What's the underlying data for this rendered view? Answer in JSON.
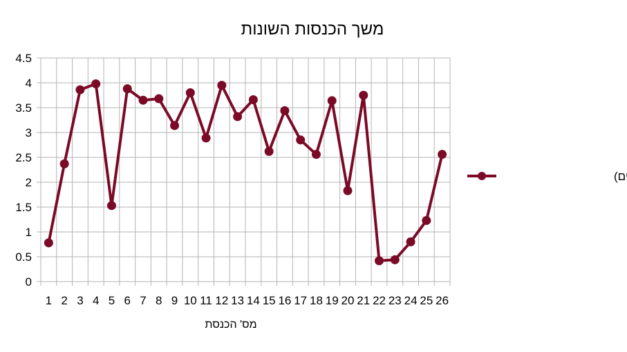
{
  "chart_data": {
    "type": "line",
    "title": "משך הכנסות השונות",
    "xlabel": "מס' הכנסת",
    "ylabel": "",
    "ylim": [
      0,
      4.5
    ],
    "yticks": [
      0,
      0.5,
      1,
      1.5,
      2,
      2.5,
      3,
      3.5,
      4,
      4.5
    ],
    "grid": true,
    "legend_position": "right",
    "categories": [
      "1",
      "2",
      "3",
      "4",
      "5",
      "6",
      "7",
      "8",
      "9",
      "10",
      "11",
      "12",
      "13",
      "14",
      "15",
      "16",
      "17",
      "18",
      "19",
      "20",
      "21",
      "22",
      "23",
      "24",
      "25",
      "26"
    ],
    "series": [
      {
        "name": "משך הכנסת (שנים)",
        "color": "#7b0a26",
        "values": [
          0.78,
          2.37,
          3.86,
          3.98,
          1.53,
          3.88,
          3.65,
          3.68,
          3.14,
          3.8,
          2.89,
          3.95,
          3.32,
          3.66,
          2.62,
          3.44,
          2.85,
          2.56,
          3.64,
          1.83,
          3.75,
          0.42,
          0.44,
          0.8,
          1.23,
          2.56
        ]
      }
    ]
  }
}
